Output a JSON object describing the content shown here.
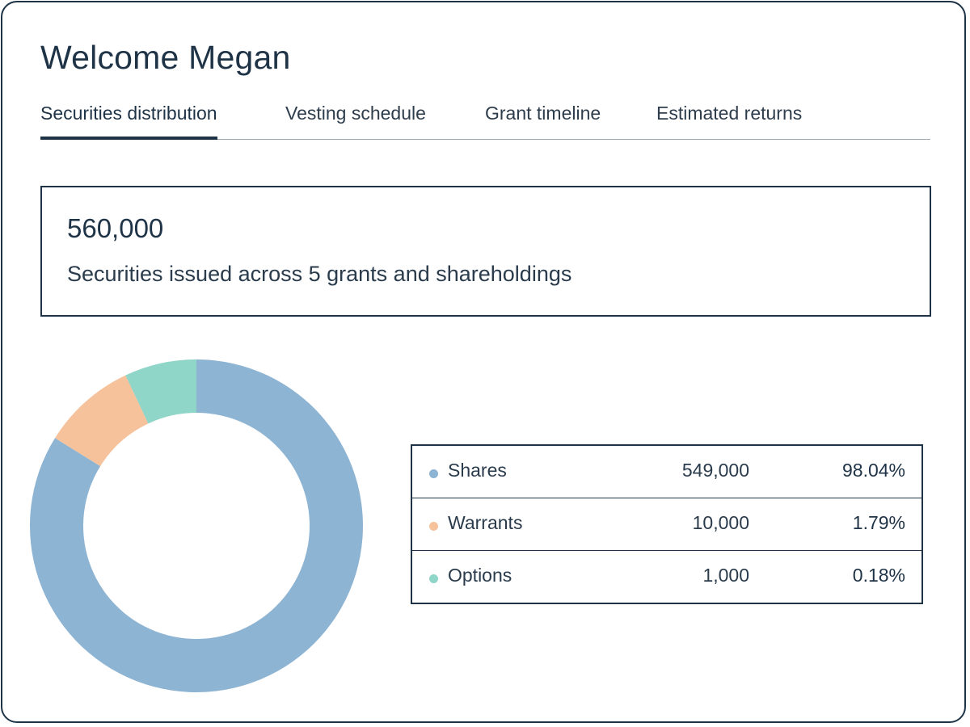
{
  "header": {
    "welcome": "Welcome Megan"
  },
  "tabs": [
    {
      "label": "Securities distribution",
      "active": true
    },
    {
      "label": "Vesting schedule",
      "active": false
    },
    {
      "label": "Grant timeline",
      "active": false
    },
    {
      "label": "Estimated returns",
      "active": false
    }
  ],
  "summary": {
    "total": "560,000",
    "description": "Securities issued across 5 grants and shareholdings"
  },
  "colors": {
    "primary": "#1f3347",
    "shares": "#8eb4d4",
    "warrants": "#f5c29c",
    "options": "#8fd5c8"
  },
  "legend": [
    {
      "label": "Shares",
      "value": "549,000",
      "percent": "98.04%",
      "color": "#8eb4d4"
    },
    {
      "label": "Warrants",
      "value": "10,000",
      "percent": "1.79%",
      "color": "#f5c29c"
    },
    {
      "label": "Options",
      "value": "1,000",
      "percent": "0.18%",
      "color": "#8fd5c8"
    }
  ],
  "chart_data": {
    "type": "pie",
    "variant": "donut",
    "categories": [
      "Shares",
      "Warrants",
      "Options"
    ],
    "values": [
      549000,
      10000,
      1000
    ],
    "display_fractions": [
      0.8385,
      0.0915,
      0.07
    ],
    "colors": [
      "#8eb4d4",
      "#f5c29c",
      "#8fd5c8"
    ]
  }
}
